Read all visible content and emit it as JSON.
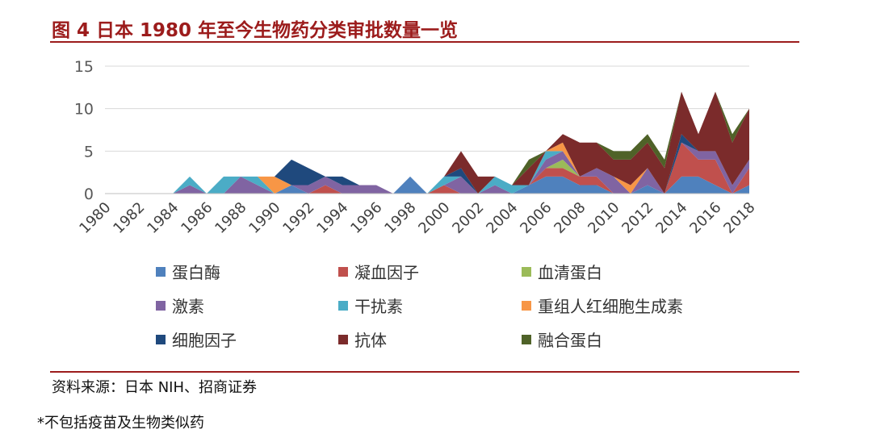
{
  "header": {
    "title": "图 4 日本 1980 年至今生物药分类审批数量一览"
  },
  "footer": {
    "source": "资料来源：日本 NIH、招商证券",
    "note": "*不包括疫苗及生物类似药"
  },
  "chart_data": {
    "type": "area",
    "stacked": true,
    "ylim": [
      0,
      15
    ],
    "yticks": [
      0,
      5,
      10,
      15
    ],
    "grid": true,
    "legend_position": "bottom",
    "x": [
      1980,
      1981,
      1982,
      1983,
      1984,
      1985,
      1986,
      1987,
      1988,
      1989,
      1990,
      1991,
      1992,
      1993,
      1994,
      1995,
      1996,
      1997,
      1998,
      1999,
      2000,
      2001,
      2002,
      2003,
      2004,
      2005,
      2006,
      2007,
      2008,
      2009,
      2010,
      2011,
      2012,
      2013,
      2014,
      2015,
      2016,
      2017,
      2018
    ],
    "xticks": [
      "1980",
      "1982",
      "1984",
      "1986",
      "1988",
      "1990",
      "1992",
      "1994",
      "1996",
      "1998",
      "2000",
      "2002",
      "2004",
      "2006",
      "2008",
      "2010",
      "2012",
      "2014",
      "2016",
      "2018"
    ],
    "series": [
      {
        "name": "蛋白酶",
        "color": "#4f81bd",
        "values": [
          0,
          0,
          0,
          0,
          0,
          0,
          0,
          0,
          0,
          0,
          0,
          1,
          0,
          0,
          0,
          0,
          0,
          0,
          2,
          0,
          0,
          0,
          0,
          0,
          0,
          1,
          2,
          2,
          1,
          1,
          0,
          0,
          1,
          0,
          2,
          2,
          1,
          0,
          1
        ]
      },
      {
        "name": "凝血因子",
        "color": "#c0504d",
        "values": [
          0,
          0,
          0,
          0,
          0,
          0,
          0,
          0,
          0,
          0,
          0,
          0,
          0,
          1,
          0,
          0,
          0,
          0,
          0,
          0,
          1,
          0,
          0,
          0,
          0,
          0,
          1,
          1,
          1,
          1,
          0,
          0,
          0,
          0,
          4,
          2,
          3,
          0,
          2
        ]
      },
      {
        "name": "血清蛋白",
        "color": "#9bbb59",
        "values": [
          0,
          0,
          0,
          0,
          0,
          0,
          0,
          0,
          0,
          0,
          0,
          0,
          0,
          0,
          0,
          0,
          0,
          0,
          0,
          0,
          0,
          0,
          0,
          0,
          0,
          0,
          0,
          1,
          0,
          0,
          0,
          0,
          0,
          0,
          0,
          0,
          0,
          0,
          0
        ]
      },
      {
        "name": "激素",
        "color": "#8064a2",
        "values": [
          0,
          0,
          0,
          0,
          0,
          1,
          0,
          0,
          2,
          1,
          0,
          0,
          1,
          1,
          1,
          1,
          1,
          0,
          0,
          0,
          0,
          2,
          0,
          1,
          0,
          0,
          1,
          1,
          0,
          1,
          2,
          0,
          2,
          0,
          0,
          1,
          1,
          1,
          1
        ]
      },
      {
        "name": "干扰素",
        "color": "#4bacc6",
        "values": [
          0,
          0,
          0,
          0,
          0,
          1,
          0,
          2,
          0,
          1,
          0,
          0,
          0,
          0,
          0,
          0,
          0,
          0,
          0,
          0,
          1,
          0,
          0,
          1,
          1,
          0,
          1,
          0,
          0,
          0,
          0,
          0,
          0,
          0,
          0,
          0,
          0,
          0,
          0
        ]
      },
      {
        "name": "重组人红细胞生成素",
        "color": "#f79646",
        "values": [
          0,
          0,
          0,
          0,
          0,
          0,
          0,
          0,
          0,
          0,
          2,
          0,
          0,
          0,
          0,
          0,
          0,
          0,
          0,
          0,
          0,
          0,
          0,
          0,
          0,
          0,
          0,
          1,
          0,
          0,
          0,
          1,
          0,
          0,
          0,
          0,
          0,
          0,
          0
        ]
      },
      {
        "name": "细胞因子",
        "color": "#1f497d",
        "values": [
          0,
          0,
          0,
          0,
          0,
          0,
          0,
          0,
          0,
          0,
          0,
          3,
          2,
          0,
          1,
          0,
          0,
          0,
          0,
          0,
          0,
          1,
          0,
          0,
          0,
          0,
          0,
          0,
          0,
          0,
          0,
          0,
          0,
          0,
          1,
          0,
          0,
          0,
          0
        ]
      },
      {
        "name": "抗体",
        "color": "#7b2b2b",
        "values": [
          0,
          0,
          0,
          0,
          0,
          0,
          0,
          0,
          0,
          0,
          0,
          0,
          0,
          0,
          0,
          0,
          0,
          0,
          0,
          0,
          0,
          2,
          2,
          0,
          0,
          2,
          0,
          1,
          4,
          3,
          2,
          3,
          3,
          3,
          5,
          2,
          7,
          5,
          6
        ]
      },
      {
        "name": "融合蛋白",
        "color": "#4f6228",
        "values": [
          0,
          0,
          0,
          0,
          0,
          0,
          0,
          0,
          0,
          0,
          0,
          0,
          0,
          0,
          0,
          0,
          0,
          0,
          0,
          0,
          0,
          0,
          0,
          0,
          0,
          1,
          0,
          0,
          0,
          0,
          1,
          1,
          1,
          1,
          0,
          0,
          0,
          1,
          0
        ]
      }
    ]
  }
}
